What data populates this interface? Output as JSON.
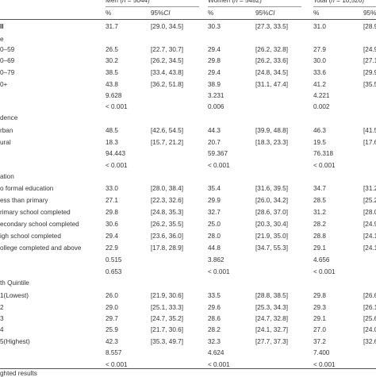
{
  "header": {
    "groups": [
      {
        "label": "Men (n = 5044)"
      },
      {
        "label": "Women (n = 5482)"
      },
      {
        "label": "Total (n = 10,526)"
      }
    ],
    "subcols": {
      "pct": "%",
      "ci": "95%CI"
    }
  },
  "rows": [
    {
      "label": "ll",
      "bold": true,
      "cells": [
        "31.7",
        "[29.0, 34.5]",
        "30.3",
        "[27.3, 33.5]",
        "31.0",
        "[28.9, 33."
      ]
    },
    {
      "label": "e",
      "cells": [
        "",
        "",
        "",
        "",
        "",
        ""
      ]
    },
    {
      "label": "0–59",
      "cells": [
        "26.5",
        "[22.7, 30.7]",
        "29.4",
        "[26.2, 32.8]",
        "27.9",
        "[24.9, 31."
      ]
    },
    {
      "label": "0–69",
      "cells": [
        "30.2",
        "[26.2, 34.5]",
        "29.8",
        "[26.2, 33.6]",
        "30.0",
        "[27.1, 33."
      ]
    },
    {
      "label": "0–79",
      "cells": [
        "38.5",
        "[33.4, 43.8]",
        "29.4",
        "[24.8, 34.5]",
        "33.6",
        "[29.9, 37."
      ]
    },
    {
      "label": "0+",
      "cells": [
        "43.8",
        "[36.2, 51.8]",
        "38.9",
        "[31.1, 47.4]",
        "41.2",
        "[35.5, 47."
      ]
    },
    {
      "label": "",
      "cells": [
        "9.628",
        "",
        "3.231",
        "",
        "4.221",
        ""
      ]
    },
    {
      "label": "",
      "cells": [
        "< 0.001",
        "",
        "0.006",
        "",
        "0.002",
        ""
      ]
    },
    {
      "label": "dence",
      "cells": [
        "",
        "",
        "",
        "",
        "",
        ""
      ]
    },
    {
      "label": "rban",
      "cells": [
        "48.5",
        "[42.6, 54.5]",
        "44.3",
        "[39.9, 48.8]",
        "46.3",
        "[41.5,"
      ]
    },
    {
      "label": "ural",
      "cells": [
        "18.3",
        "[15.7, 21.2]",
        "20.7",
        "[18.3, 23.3]",
        "19.5",
        "[17.6,"
      ]
    },
    {
      "label": "",
      "cells": [
        "94.443",
        "",
        "59.367",
        "",
        "76.318",
        ""
      ]
    },
    {
      "label": "",
      "cells": [
        "< 0.001",
        "",
        "< 0.001",
        "",
        "< 0.001",
        ""
      ]
    },
    {
      "label": "ation",
      "cells": [
        "",
        "",
        "",
        "",
        "",
        ""
      ]
    },
    {
      "label": "o formal education",
      "cells": [
        "33.0",
        "[28.0, 38.4]",
        "35.4",
        "[31.6, 39.5]",
        "34.7",
        "[31.2,"
      ]
    },
    {
      "label": "ess than primary",
      "cells": [
        "27.1",
        "[22.3, 32.6]",
        "29.9",
        "[26.0, 34.2]",
        "28.5",
        "[25.2,"
      ]
    },
    {
      "label": "rimary school completed",
      "cells": [
        "29.8",
        "[24.8, 35.3]",
        "32.7",
        "[28.6, 37.0]",
        "31.2",
        "[28.0,"
      ]
    },
    {
      "label": "econdary school completed",
      "cells": [
        "30.6",
        "[26.2, 35.5]",
        "25.0",
        "[20.3, 30.4]",
        "28.2",
        "[24.9,"
      ]
    },
    {
      "label": "igh school completed",
      "cells": [
        "29.4",
        "[23.6, 36.0]",
        "28.0",
        "[21.9, 35.0]",
        "28.8",
        "[24.1,"
      ]
    },
    {
      "label": "ollege completed and above",
      "cells": [
        "22.9",
        "[17.8, 28.9]",
        "44.8",
        "[34.7, 55.3]",
        "29.1",
        "[24.1,"
      ]
    },
    {
      "label": "",
      "cells": [
        "0.515",
        "",
        "3.862",
        "",
        "4.656",
        ""
      ]
    },
    {
      "label": "",
      "cells": [
        "0.653",
        "",
        "< 0.001",
        "",
        "< 0.001",
        ""
      ]
    },
    {
      "label": "th Quintile",
      "cells": [
        "",
        "",
        "",
        "",
        "",
        ""
      ]
    },
    {
      "label": "1(Lowest)",
      "cells": [
        "26.0",
        "[21.9, 30.6]",
        "33.5",
        "[28.8, 38.5]",
        "29.8",
        "[26.6,"
      ]
    },
    {
      "label": "2",
      "cells": [
        "29.0",
        "[25.1, 33.3]",
        "29.6",
        "[25.3, 34.3]",
        "29.3",
        "[26.1,"
      ]
    },
    {
      "label": "3",
      "cells": [
        "29.7",
        "[24.7, 35.2]",
        "28.6",
        "[24.7, 32.8]",
        "29.1",
        "[25.6,"
      ]
    },
    {
      "label": "4",
      "cells": [
        "25.9",
        "[21.7, 30.6]",
        "28.2",
        "[24.1, 32.7]",
        "27.0",
        "[24.0,"
      ]
    },
    {
      "label": "5(Highest)",
      "cells": [
        "42.3",
        "[35.3, 49.7]",
        "32.3",
        "[27.7, 37.3]",
        "37.2",
        "[32.6,"
      ]
    },
    {
      "label": "",
      "cells": [
        "8.557",
        "",
        "4.624",
        "",
        "7.400",
        ""
      ]
    },
    {
      "label": "",
      "cells": [
        "< 0.001",
        "",
        "< 0.001",
        "",
        "< 0.001",
        ""
      ]
    }
  ],
  "footnote": "ghted results"
}
